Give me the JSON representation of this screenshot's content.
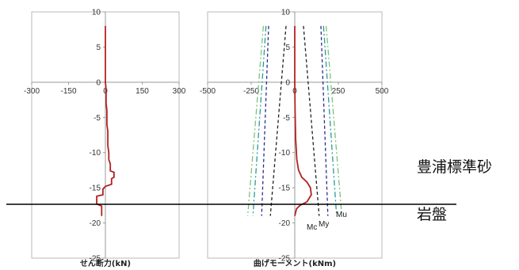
{
  "chart_data": [
    {
      "type": "line",
      "xlabel": "せん断力(kN)",
      "ylabel": "",
      "xlim": [
        -300,
        300
      ],
      "ylim": [
        -25,
        10
      ],
      "xticks": [
        -300,
        -150,
        0,
        150,
        300
      ],
      "yticks": [
        10,
        5,
        0,
        -5,
        -10,
        -15,
        -20,
        -25
      ],
      "xtick_labels": [
        "-300",
        "-150",
        "0",
        "150",
        "300"
      ],
      "ytick_labels": [
        "10",
        "5",
        "0",
        "-5",
        "-10",
        "-15",
        "-20",
        "-25"
      ],
      "grid": false,
      "series": [
        {
          "color": "#b22222",
          "style": "solid",
          "points": [
            [
              0,
              8
            ],
            [
              0,
              0
            ],
            [
              3,
              -1
            ],
            [
              3,
              -3
            ],
            [
              6,
              -4
            ],
            [
              6,
              -6
            ],
            [
              10,
              -7
            ],
            [
              10,
              -9
            ],
            [
              14,
              -10
            ],
            [
              14,
              -11
            ],
            [
              20,
              -11.6
            ],
            [
              20,
              -12.6
            ],
            [
              35,
              -12.8
            ],
            [
              35,
              -13.5
            ],
            [
              25,
              -13.7
            ],
            [
              25,
              -14.5
            ],
            [
              0,
              -14.8
            ],
            [
              -10,
              -15.2
            ],
            [
              -10,
              -16
            ],
            [
              -35,
              -16.2
            ],
            [
              -35,
              -17.3
            ],
            [
              -15,
              -17.6
            ],
            [
              -15,
              -19
            ]
          ]
        }
      ]
    },
    {
      "type": "line",
      "xlabel": "曲げモーメント(kNm)",
      "ylabel": "",
      "xlim": [
        -500,
        500
      ],
      "ylim": [
        -25,
        10
      ],
      "xticks": [
        -500,
        -250,
        0,
        250,
        500
      ],
      "yticks": [
        10,
        5,
        0,
        -5,
        -10,
        -15,
        -20,
        -25
      ],
      "xtick_labels": [
        "-500",
        "-250",
        "0",
        "250",
        "500"
      ],
      "ytick_labels": [
        "10",
        "5",
        "0",
        "-5",
        "-10",
        "-15",
        "-20",
        "-25"
      ],
      "grid": false,
      "series": [
        {
          "color": "#b22222",
          "style": "solid",
          "points": [
            [
              0,
              8
            ],
            [
              0,
              0
            ],
            [
              2,
              -4
            ],
            [
              5,
              -8
            ],
            [
              12,
              -11
            ],
            [
              22,
              -12.5
            ],
            [
              40,
              -13.5
            ],
            [
              70,
              -14.2
            ],
            [
              90,
              -15
            ],
            [
              95,
              -16
            ],
            [
              70,
              -17
            ],
            [
              30,
              -17.5
            ],
            [
              10,
              -18
            ],
            [
              0,
              -19
            ]
          ]
        },
        {
          "name": "Mc",
          "color": "#222222",
          "style": "dashed",
          "points_pos": [
            [
              50,
              8
            ],
            [
              140,
              -19
            ]
          ],
          "points_neg": [
            [
              -50,
              8
            ],
            [
              -140,
              -19
            ]
          ]
        },
        {
          "name": "My",
          "color": "#2c2c8c",
          "style": "dashed",
          "points_pos": [
            [
              150,
              8
            ],
            [
              190,
              -19
            ]
          ],
          "points_neg": [
            [
              -150,
              8
            ],
            [
              -190,
              -19
            ]
          ]
        },
        {
          "name": "Mu",
          "color": "#2a9a9a",
          "style": "dashdot",
          "points_pos": [
            [
              165,
              8
            ],
            [
              240,
              -19
            ]
          ],
          "points_neg": [
            [
              -165,
              8
            ],
            [
              -240,
              -19
            ]
          ]
        },
        {
          "name": "",
          "color": "#7ac27a",
          "style": "dashdot",
          "points_pos": [
            [
              180,
              8
            ],
            [
              270,
              -19
            ]
          ],
          "points_neg": [
            [
              -180,
              8
            ],
            [
              -270,
              -19
            ]
          ]
        }
      ],
      "annotations": [
        "Mc",
        "My",
        "Mu"
      ]
    }
  ],
  "layers": {
    "upper": "豊浦標準砂",
    "lower": "岩盤"
  },
  "colors": {
    "shear": "#b22222",
    "axes": "#999999",
    "boundary": "#000000"
  }
}
